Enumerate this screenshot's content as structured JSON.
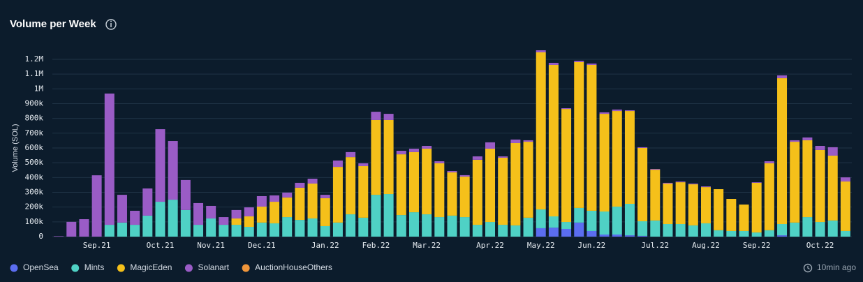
{
  "chart_data": {
    "type": "stacked_bar",
    "title": "Volume per Week",
    "y_label": "Volume (SOL)",
    "updated": "10min ago",
    "categories": [
      null,
      null,
      null,
      "Sep.21",
      null,
      null,
      null,
      null,
      "Oct.21",
      null,
      null,
      null,
      "Nov.21",
      null,
      null,
      null,
      "Dec.21",
      null,
      null,
      null,
      null,
      "Jan.22",
      null,
      null,
      null,
      "Feb.22",
      null,
      null,
      null,
      "Mar.22",
      null,
      null,
      null,
      null,
      "Apr.22",
      null,
      null,
      null,
      "May.22",
      null,
      null,
      null,
      "Jun.22",
      null,
      null,
      null,
      null,
      "Jul.22",
      null,
      null,
      null,
      "Aug.22",
      null,
      null,
      null,
      "Sep.22",
      null,
      null,
      null,
      null,
      "Oct.22",
      null,
      null
    ],
    "series": [
      {
        "name": "OpenSea",
        "color": "#5b6df0",
        "values": [
          0,
          0,
          0,
          0,
          0,
          0,
          0,
          0,
          0,
          0,
          0,
          0,
          0,
          0,
          0,
          0,
          0,
          0,
          0,
          0,
          0,
          0,
          0,
          0,
          0,
          0,
          0,
          0,
          0,
          0,
          0,
          0,
          0,
          0,
          0,
          0,
          0,
          0,
          57000,
          61000,
          52000,
          95000,
          38000,
          14000,
          14000,
          9000,
          5000,
          0,
          0,
          0,
          0,
          0,
          0,
          0,
          0,
          0,
          0,
          9000,
          0,
          0,
          0,
          0,
          0
        ]
      },
      {
        "name": "Mints",
        "color": "#4fd1c5",
        "values": [
          0,
          0,
          0,
          0,
          80000,
          95000,
          80000,
          142000,
          236000,
          250000,
          180000,
          80000,
          123000,
          80000,
          80000,
          66000,
          95000,
          90000,
          132000,
          113000,
          123000,
          71000,
          95000,
          151000,
          128000,
          283000,
          288000,
          146000,
          165000,
          151000,
          132000,
          142000,
          132000,
          80000,
          99000,
          80000,
          76000,
          128000,
          127000,
          76000,
          47000,
          99000,
          137000,
          156000,
          189000,
          213000,
          99000,
          109000,
          85000,
          85000,
          76000,
          90000,
          43000,
          38000,
          38000,
          28000,
          43000,
          76000,
          95000,
          132000,
          99000,
          109000,
          38000
        ]
      },
      {
        "name": "MagicEden",
        "color": "#f5c01a",
        "values": [
          0,
          0,
          0,
          0,
          0,
          0,
          0,
          0,
          0,
          0,
          0,
          0,
          0,
          0,
          43000,
          71000,
          108000,
          146000,
          133000,
          218000,
          236000,
          189000,
          377000,
          387000,
          349000,
          506000,
          501000,
          411000,
          407000,
          444000,
          364000,
          293000,
          274000,
          440000,
          496000,
          454000,
          557000,
          514000,
          1063000,
          1025000,
          765000,
          987000,
          987000,
          661000,
          647000,
          628000,
          496000,
          344000,
          274000,
          283000,
          278000,
          245000,
          278000,
          217000,
          179000,
          336000,
          453000,
          987000,
          547000,
          520000,
          487000,
          439000,
          335000
        ]
      },
      {
        "name": "Solanart",
        "color": "#9a5cc6",
        "values": [
          3000,
          100000,
          118000,
          415000,
          888000,
          188000,
          95000,
          184000,
          491000,
          397000,
          203000,
          147000,
          85000,
          52000,
          57000,
          61000,
          71000,
          43000,
          33000,
          33000,
          33000,
          23000,
          43000,
          34000,
          19000,
          56000,
          42000,
          24000,
          23000,
          19000,
          14000,
          9000,
          10000,
          23000,
          43000,
          9000,
          24000,
          10000,
          14000,
          14000,
          5000,
          9000,
          9000,
          10000,
          10000,
          5000,
          5000,
          5000,
          5000,
          5000,
          5000,
          5000,
          0,
          0,
          0,
          4000,
          14000,
          19000,
          10000,
          19000,
          28000,
          57000,
          28000
        ]
      },
      {
        "name": "AuctionHouseOthers",
        "color": "#f0953a",
        "values": [
          0,
          0,
          0,
          0,
          0,
          0,
          0,
          0,
          0,
          0,
          0,
          0,
          0,
          0,
          0,
          0,
          0,
          0,
          0,
          0,
          0,
          0,
          0,
          0,
          0,
          0,
          0,
          0,
          0,
          0,
          0,
          0,
          0,
          0,
          0,
          0,
          0,
          0,
          0,
          0,
          0,
          0,
          0,
          0,
          0,
          0,
          0,
          0,
          0,
          0,
          0,
          0,
          0,
          0,
          0,
          0,
          0,
          0,
          0,
          0,
          0,
          0,
          0
        ]
      }
    ],
    "ylim": [
      0,
      1280000
    ],
    "yticks": [
      0,
      {
        "value": 100000,
        "label": "100k"
      },
      {
        "value": 200000,
        "label": "200k"
      },
      {
        "value": 300000,
        "label": "300k"
      },
      {
        "value": 400000,
        "label": "400k"
      },
      {
        "value": 500000,
        "label": "500k"
      },
      {
        "value": 600000,
        "label": "600k"
      },
      {
        "value": 700000,
        "label": "700k"
      },
      {
        "value": 800000,
        "label": "800k"
      },
      {
        "value": 900000,
        "label": "900k"
      },
      {
        "value": 1000000,
        "label": "1M"
      },
      {
        "value": 1100000,
        "label": "1.1M"
      },
      {
        "value": 1200000,
        "label": "1.2M"
      }
    ],
    "grid": true,
    "legend": "bottom-left"
  }
}
